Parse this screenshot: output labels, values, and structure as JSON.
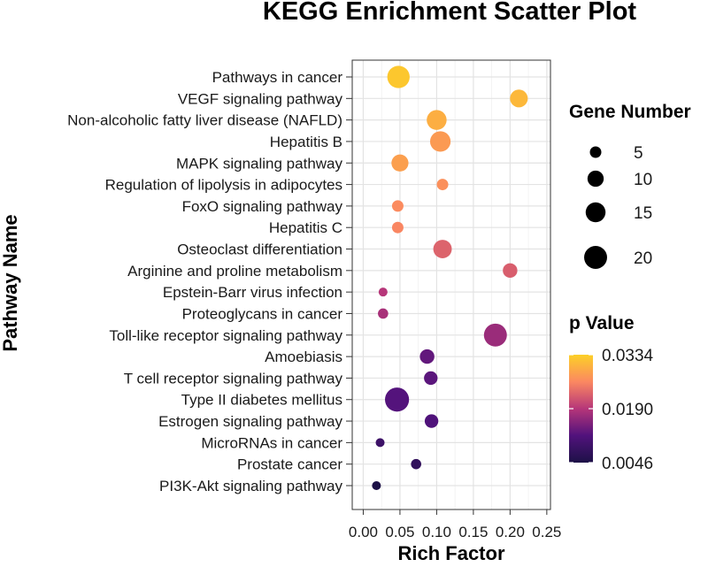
{
  "chart_data": {
    "type": "scatter",
    "title": "KEGG Enrichment Scatter Plot",
    "xlabel": "Rich Factor",
    "ylabel": "Pathway Name",
    "xlim": [
      -0.015,
      0.255
    ],
    "x_ticks": [
      "0.00",
      "0.05",
      "0.10",
      "0.15",
      "0.20",
      "0.25"
    ],
    "grid": true,
    "categories": [
      "Pathways in cancer",
      "VEGF signaling pathway",
      "Non-alcoholic fatty liver disease (NAFLD)",
      "Hepatitis B",
      "MAPK signaling pathway",
      "Regulation of lipolysis in adipocytes",
      "FoxO signaling pathway",
      "Hepatitis C",
      "Osteoclast differentiation",
      "Arginine and proline metabolism",
      "Epstein-Barr virus infection",
      "Proteoglycans in cancer",
      "Toll-like receptor signaling pathway",
      "Amoebiasis",
      "T cell receptor signaling pathway",
      "Type II diabetes mellitus",
      "Estrogen signaling pathway",
      "MicroRNAs in cancer",
      "Prostate cancer",
      "PI3K-Akt signaling pathway"
    ],
    "points": [
      {
        "pathway": "Pathways in cancer",
        "rich_factor": 0.048,
        "gene_number": 19,
        "p_value": 0.0325
      },
      {
        "pathway": "VEGF signaling pathway",
        "rich_factor": 0.212,
        "gene_number": 12,
        "p_value": 0.031
      },
      {
        "pathway": "Non-alcoholic fatty liver disease (NAFLD)",
        "rich_factor": 0.1,
        "gene_number": 15,
        "p_value": 0.03
      },
      {
        "pathway": "Hepatitis B",
        "rich_factor": 0.105,
        "gene_number": 16,
        "p_value": 0.028
      },
      {
        "pathway": "MAPK signaling pathway",
        "rich_factor": 0.05,
        "gene_number": 11,
        "p_value": 0.0285
      },
      {
        "pathway": "Regulation of lipolysis in adipocytes",
        "rich_factor": 0.108,
        "gene_number": 5,
        "p_value": 0.027
      },
      {
        "pathway": "FoxO signaling pathway",
        "rich_factor": 0.047,
        "gene_number": 5,
        "p_value": 0.0265
      },
      {
        "pathway": "Hepatitis C",
        "rich_factor": 0.047,
        "gene_number": 5,
        "p_value": 0.026
      },
      {
        "pathway": "Osteoclast differentiation",
        "rich_factor": 0.108,
        "gene_number": 13,
        "p_value": 0.023
      },
      {
        "pathway": "Arginine and proline metabolism",
        "rich_factor": 0.2,
        "gene_number": 8,
        "p_value": 0.0225
      },
      {
        "pathway": "Epstein-Barr virus infection",
        "rich_factor": 0.027,
        "gene_number": 3,
        "p_value": 0.019
      },
      {
        "pathway": "Proteoglycans in cancer",
        "rich_factor": 0.027,
        "gene_number": 4,
        "p_value": 0.018
      },
      {
        "pathway": "Toll-like receptor signaling pathway",
        "rich_factor": 0.18,
        "gene_number": 20,
        "p_value": 0.017
      },
      {
        "pathway": "Amoebiasis",
        "rich_factor": 0.087,
        "gene_number": 8,
        "p_value": 0.013
      },
      {
        "pathway": "T cell receptor signaling pathway",
        "rich_factor": 0.092,
        "gene_number": 7,
        "p_value": 0.0125
      },
      {
        "pathway": "Type II diabetes mellitus",
        "rich_factor": 0.046,
        "gene_number": 22,
        "p_value": 0.012
      },
      {
        "pathway": "Estrogen signaling pathway",
        "rich_factor": 0.093,
        "gene_number": 7,
        "p_value": 0.0115
      },
      {
        "pathway": "MicroRNAs in cancer",
        "rich_factor": 0.023,
        "gene_number": 3,
        "p_value": 0.009
      },
      {
        "pathway": "Prostate cancer",
        "rich_factor": 0.072,
        "gene_number": 4,
        "p_value": 0.0075
      },
      {
        "pathway": "PI3K-Akt signaling pathway",
        "rich_factor": 0.018,
        "gene_number": 3,
        "p_value": 0.0046
      }
    ],
    "size_legend": {
      "title": "Gene Number",
      "values": [
        5,
        10,
        15,
        20
      ],
      "labels": [
        "5",
        "10",
        "15",
        "20"
      ]
    },
    "color_legend": {
      "title": "p Value",
      "min": 0.0046,
      "max": 0.0334,
      "labels": [
        "0.0334",
        "0.0190",
        "0.0046"
      ],
      "colormap_stops": [
        "#1d1147",
        "#51127c",
        "#b63679",
        "#fb8861",
        "#fcd027"
      ]
    },
    "legend_placement": "right"
  }
}
